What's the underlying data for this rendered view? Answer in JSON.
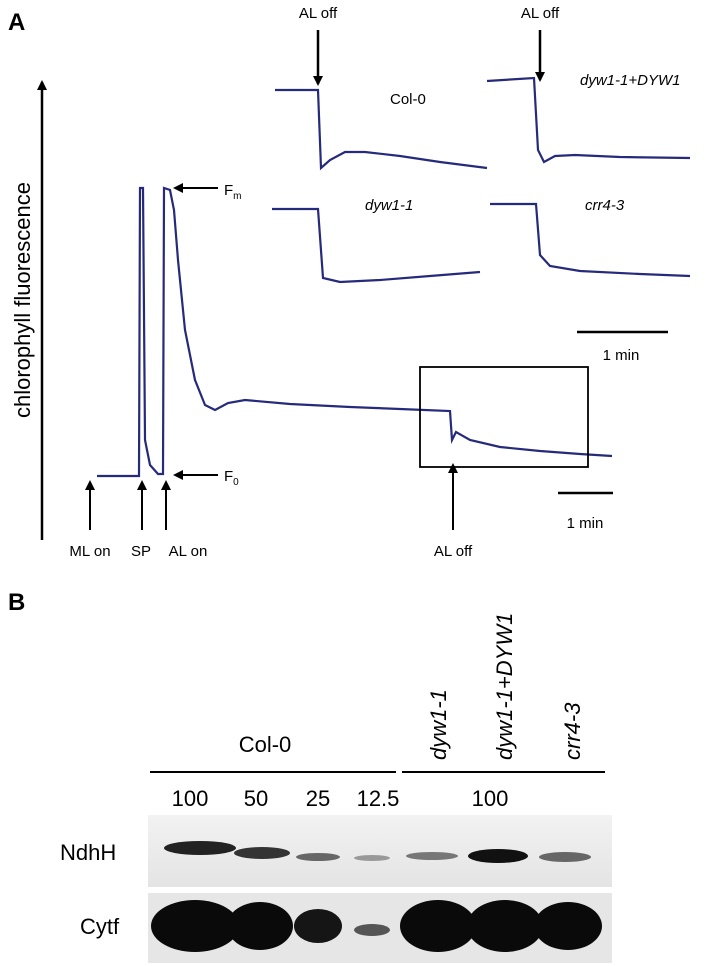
{
  "panel_a": {
    "label": "A",
    "y_axis_label": "chlorophyll fluorescence",
    "fm": {
      "main": "F",
      "sub": "m"
    },
    "f0": {
      "main": "F",
      "sub": "0"
    },
    "events": [
      "ML on",
      "SP",
      "AL on",
      "AL off"
    ],
    "scale_bar": "1 min",
    "inset": {
      "arrows": [
        "AL off",
        "AL off"
      ],
      "traces": [
        "Col-0",
        "dyw1-1+DYW1",
        "dyw1-1",
        "crr4-3"
      ],
      "scale_bar": "1 min"
    }
  },
  "panel_b": {
    "label": "B",
    "group": "Col-0",
    "lanes": [
      "dyw1-1",
      "dyw1-1+DYW1",
      "crr4-3"
    ],
    "amounts": [
      "100",
      "50",
      "25",
      "12.5",
      "100"
    ],
    "rows": [
      "NdhH",
      "Cytf"
    ]
  }
}
